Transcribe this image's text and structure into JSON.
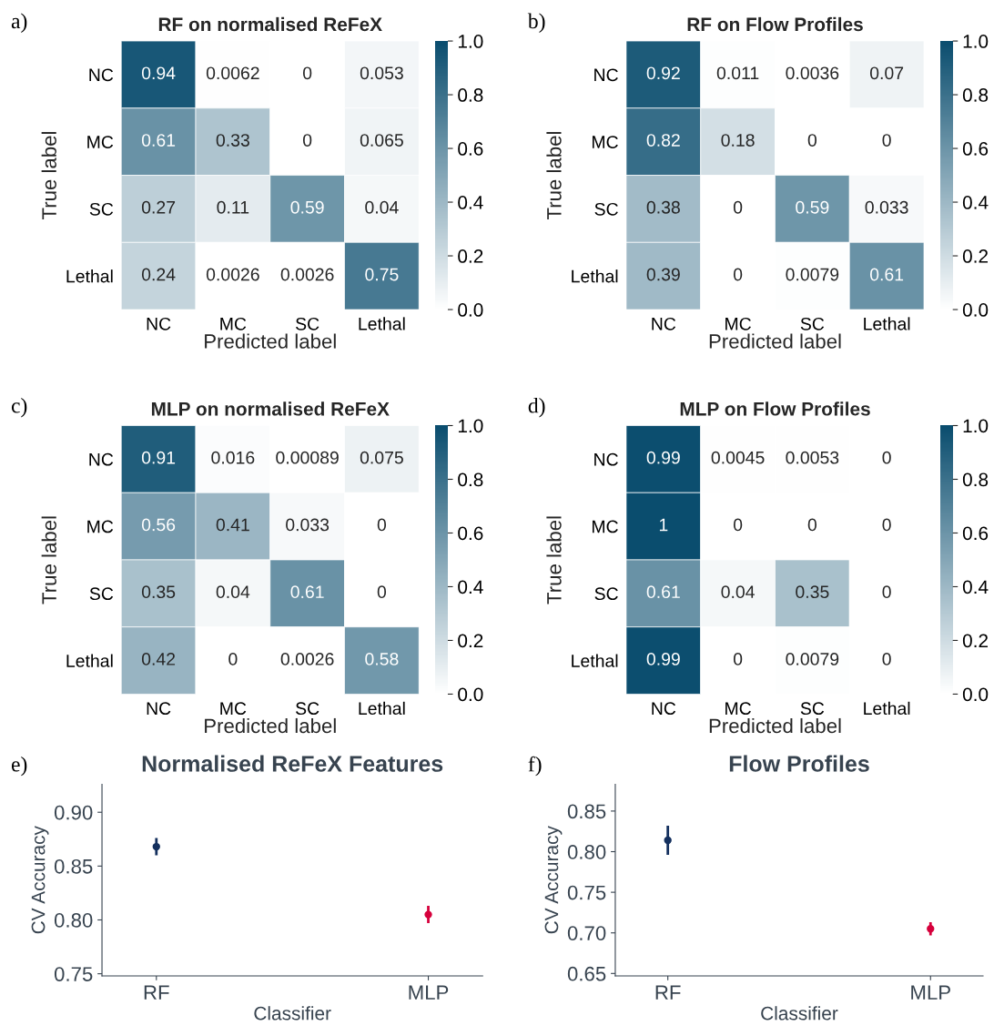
{
  "chart_data": [
    {
      "type": "heatmap",
      "title": "RF on normalised ReFeX",
      "xlabel": "Predicted label",
      "ylabel": "True label",
      "annotations": [
        "a)"
      ],
      "categories": [
        "NC",
        "MC",
        "SC",
        "Lethal"
      ],
      "y_categories": [
        "NC",
        "MC",
        "SC",
        "Lethal"
      ],
      "cells": [
        [
          0.94,
          0.0062,
          0,
          0.053
        ],
        [
          0.61,
          0.33,
          0,
          0.065
        ],
        [
          0.27,
          0.11,
          0.59,
          0.04
        ],
        [
          0.24,
          0.0026,
          0.0026,
          0.75
        ]
      ],
      "data_labels": true,
      "clim": [
        0,
        1
      ],
      "cticks": [
        {
          "value": 0,
          "label": "0.0"
        },
        {
          "value": 0.2,
          "label": "0.2"
        },
        {
          "value": 0.4,
          "label": "0.4"
        },
        {
          "value": 0.6,
          "label": "0.6"
        },
        {
          "value": 0.8,
          "label": "0.8"
        },
        {
          "value": 1,
          "label": "1.0"
        }
      ]
    },
    {
      "type": "heatmap",
      "title": "RF on Flow Profiles",
      "xlabel": "Predicted label",
      "ylabel": "True label",
      "annotations": [
        "b)"
      ],
      "categories": [
        "NC",
        "MC",
        "SC",
        "Lethal"
      ],
      "y_categories": [
        "NC",
        "MC",
        "SC",
        "Lethal"
      ],
      "cells": [
        [
          0.92,
          0.011,
          0.0036,
          0.07
        ],
        [
          0.82,
          0.18,
          0,
          0
        ],
        [
          0.38,
          0,
          0.59,
          0.033
        ],
        [
          0.39,
          0,
          0.0079,
          0.61
        ]
      ],
      "data_labels": true,
      "clim": [
        0,
        1
      ],
      "cticks": [
        {
          "value": 0,
          "label": "0.0"
        },
        {
          "value": 0.2,
          "label": "0.2"
        },
        {
          "value": 0.4,
          "label": "0.4"
        },
        {
          "value": 0.6,
          "label": "0.6"
        },
        {
          "value": 0.8,
          "label": "0.8"
        },
        {
          "value": 1,
          "label": "1.0"
        }
      ]
    },
    {
      "type": "heatmap",
      "title": "MLP on normalised ReFeX",
      "xlabel": "Predicted label",
      "ylabel": "True label",
      "annotations": [
        "c)"
      ],
      "categories": [
        "NC",
        "MC",
        "SC",
        "Lethal"
      ],
      "y_categories": [
        "NC",
        "MC",
        "SC",
        "Lethal"
      ],
      "cells": [
        [
          0.91,
          0.016,
          0.00089,
          0.075
        ],
        [
          0.56,
          0.41,
          0.033,
          0
        ],
        [
          0.35,
          0.04,
          0.61,
          0
        ],
        [
          0.42,
          0,
          0.0026,
          0.58
        ]
      ],
      "data_labels": true,
      "clim": [
        0,
        1
      ],
      "cticks": [
        {
          "value": 0,
          "label": "0.0"
        },
        {
          "value": 0.2,
          "label": "0.2"
        },
        {
          "value": 0.4,
          "label": "0.4"
        },
        {
          "value": 0.6,
          "label": "0.6"
        },
        {
          "value": 0.8,
          "label": "0.8"
        },
        {
          "value": 1,
          "label": "1.0"
        }
      ]
    },
    {
      "type": "heatmap",
      "title": "MLP on Flow Profiles",
      "xlabel": "Predicted label",
      "ylabel": "True label",
      "annotations": [
        "d)"
      ],
      "categories": [
        "NC",
        "MC",
        "SC",
        "Lethal"
      ],
      "y_categories": [
        "NC",
        "MC",
        "SC",
        "Lethal"
      ],
      "cells": [
        [
          0.99,
          0.0045,
          0.0053,
          0
        ],
        [
          1,
          0,
          0,
          0
        ],
        [
          0.61,
          0.04,
          0.35,
          0
        ],
        [
          0.99,
          0,
          0.0079,
          0
        ]
      ],
      "data_labels": true,
      "clim": [
        0,
        1
      ],
      "cticks": [
        {
          "value": 0,
          "label": "0.0"
        },
        {
          "value": 0.2,
          "label": "0.2"
        },
        {
          "value": 0.4,
          "label": "0.4"
        },
        {
          "value": 0.6,
          "label": "0.6"
        },
        {
          "value": 0.8,
          "label": "0.8"
        },
        {
          "value": 1,
          "label": "1.0"
        }
      ]
    },
    {
      "type": "scatter",
      "title": "Normalised ReFeX Features",
      "xlabel": "Classifier",
      "ylabel": "CV Accuracy",
      "annotations": [
        "e)"
      ],
      "categories": [
        "RF",
        "MLP"
      ],
      "values": [
        0.868,
        0.805
      ],
      "errors": [
        0.008,
        0.008
      ],
      "colors": [
        "#14305e",
        "#d6003c"
      ],
      "marker": "circle",
      "ylim": [
        0.748,
        0.926
      ],
      "yticks": [
        {
          "value": 0.75,
          "label": "0.75"
        },
        {
          "value": 0.8,
          "label": "0.80"
        },
        {
          "value": 0.85,
          "label": "0.85"
        },
        {
          "value": 0.9,
          "label": "0.90"
        }
      ],
      "grid": false
    },
    {
      "type": "scatter",
      "title": "Flow Profiles",
      "xlabel": "Classifier",
      "ylabel": "CV Accuracy",
      "annotations": [
        "f)"
      ],
      "categories": [
        "RF",
        "MLP"
      ],
      "values": [
        0.814,
        0.705
      ],
      "errors": [
        0.018,
        0.008
      ],
      "colors": [
        "#14305e",
        "#d6003c"
      ],
      "marker": "circle",
      "ylim": [
        0.647,
        0.883
      ],
      "yticks": [
        {
          "value": 0.65,
          "label": "0.65"
        },
        {
          "value": 0.7,
          "label": "0.70"
        },
        {
          "value": 0.75,
          "label": "0.75"
        },
        {
          "value": 0.8,
          "label": "0.80"
        },
        {
          "value": 0.85,
          "label": "0.85"
        }
      ],
      "grid": false
    }
  ]
}
